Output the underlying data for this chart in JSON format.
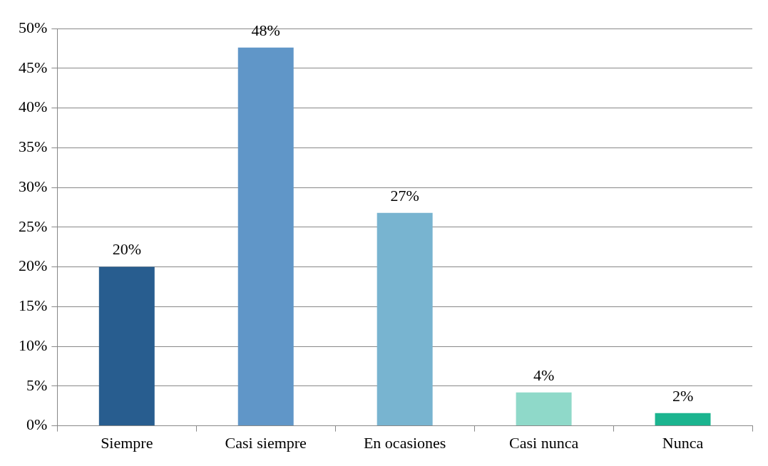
{
  "chart_data": {
    "type": "bar",
    "categories": [
      "Siempre",
      "Casi siempre",
      "En ocasiones",
      "Casi nunca",
      "Nunca"
    ],
    "values": [
      20.0,
      47.6,
      26.8,
      4.2,
      1.6
    ],
    "value_labels": [
      "20%",
      "48%",
      "27%",
      "4%",
      "2%"
    ],
    "colors": [
      "#285d8f",
      "#6096c8",
      "#78b4d0",
      "#8fd9c9",
      "#1bb48f"
    ],
    "ylim": [
      0,
      50
    ],
    "yticks": [
      {
        "value": 0,
        "label": "0%"
      },
      {
        "value": 5,
        "label": "5%"
      },
      {
        "value": 10,
        "label": "10%"
      },
      {
        "value": 15,
        "label": "15%"
      },
      {
        "value": 20,
        "label": "20%"
      },
      {
        "value": 25,
        "label": "25%"
      },
      {
        "value": 30,
        "label": "30%"
      },
      {
        "value": 35,
        "label": "35%"
      },
      {
        "value": 40,
        "label": "40%"
      },
      {
        "value": 45,
        "label": "45%"
      },
      {
        "value": 50,
        "label": "50%"
      }
    ],
    "grid": "y",
    "legend": false
  }
}
